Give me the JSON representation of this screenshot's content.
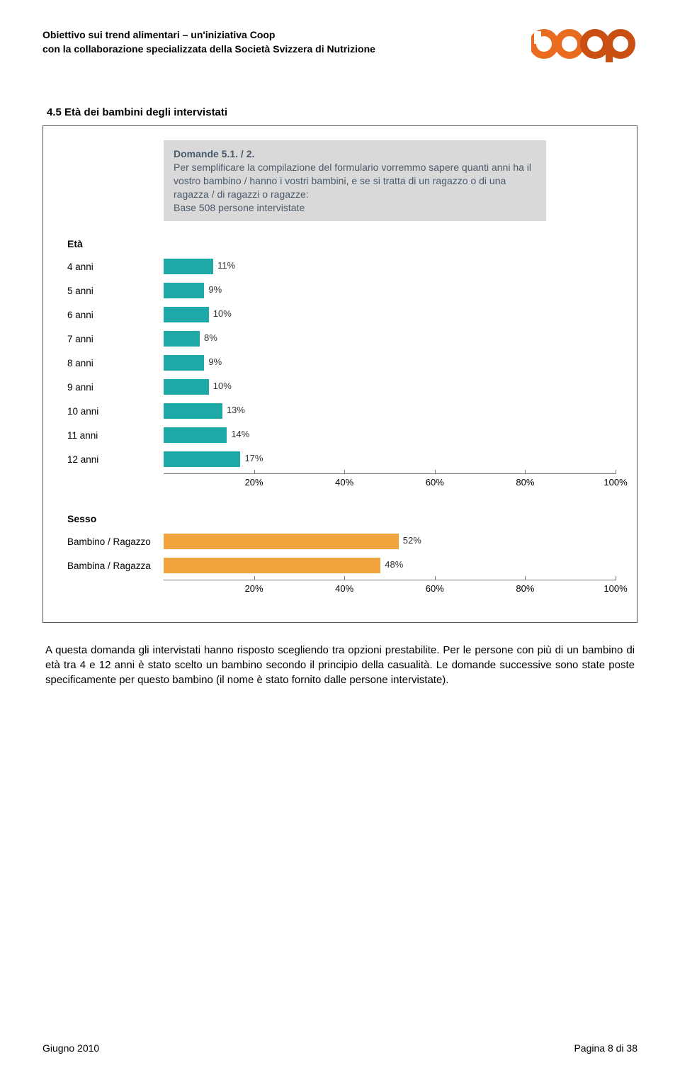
{
  "header": {
    "line1": "Obiettivo sui trend alimentari – un'iniziativa Coop",
    "line2": "con la collaborazione specializzata della Società Svizzera di Nutrizione"
  },
  "logo": {
    "text": "coop",
    "c1": "#e96b1f",
    "c2": "#e96b1f",
    "c3": "#c94f12",
    "c4": "#c94f12"
  },
  "section_title": "4.5   Età dei bambini degli intervistati",
  "question": {
    "title": "Domande 5.1. / 2.",
    "body": "Per semplificare la compilazione del formulario vorremmo sapere quanti anni ha il vostro bambino / hanno i vostri bambini, e se si tratta di un ragazzo o di una ragazza / di ragazzi o ragazze:",
    "base": "Base 508 persone intervistate"
  },
  "eta_chart": {
    "type": "bar",
    "title": "Età",
    "bar_color": "#1fa9a6",
    "label_color": "#333333",
    "xmax": 100,
    "ticks": [
      20,
      40,
      60,
      80,
      100
    ],
    "rows": [
      {
        "cat": "4 anni",
        "val": 11
      },
      {
        "cat": "5 anni",
        "val": 9
      },
      {
        "cat": "6 anni",
        "val": 10
      },
      {
        "cat": "7 anni",
        "val": 8
      },
      {
        "cat": "8 anni",
        "val": 9
      },
      {
        "cat": "9 anni",
        "val": 10
      },
      {
        "cat": "10 anni",
        "val": 13
      },
      {
        "cat": "11 anni",
        "val": 14
      },
      {
        "cat": "12 anni",
        "val": 17
      }
    ]
  },
  "sesso_chart": {
    "type": "bar",
    "title": "Sesso",
    "bar_color": "#f2a43c",
    "label_color": "#333333",
    "xmax": 100,
    "ticks": [
      20,
      40,
      60,
      80,
      100
    ],
    "rows": [
      {
        "cat": "Bambino / Ragazzo",
        "val": 52
      },
      {
        "cat": "Bambina / Ragazza",
        "val": 48
      }
    ]
  },
  "body_text": "A questa domanda gli intervistati hanno risposto scegliendo tra opzioni prestabilite. Per le persone con più di un bambino di età tra 4 e 12 anni è stato scelto un bambino secondo il principio della casualità. Le domande successive sono state poste specificamente per questo bambino (il nome è stato fornito dalle persone intervistate).",
  "footer": {
    "left": "Giugno 2010",
    "right": "Pagina 8 di 38"
  }
}
